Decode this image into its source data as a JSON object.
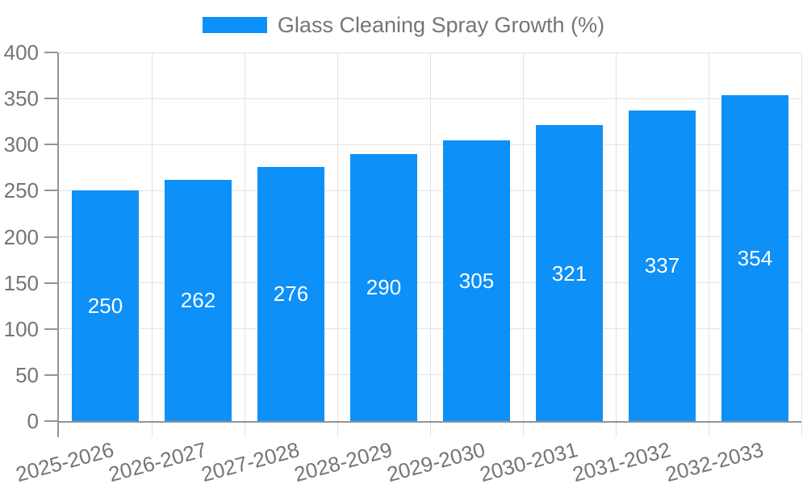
{
  "legend": {
    "label": "Glass Cleaning Spray Growth (%)"
  },
  "chart_data": {
    "type": "bar",
    "title": "Glass Cleaning Spray Growth (%)",
    "categories": [
      "2025-2026",
      "2026-2027",
      "2027-2028",
      "2028-2029",
      "2029-2030",
      "2030-2031",
      "2031-2032",
      "2032-2033"
    ],
    "values": [
      250,
      262,
      276,
      290,
      305,
      321,
      337,
      354
    ],
    "xlabel": "",
    "ylabel": "",
    "ylim": [
      0,
      400
    ],
    "yticks": [
      0,
      50,
      100,
      150,
      200,
      250,
      300,
      350,
      400
    ],
    "grid": true,
    "legend_position": "top",
    "x_tick_rotation_deg": -15,
    "bar_color": "#0d90f8",
    "bar_label_color": "#ffffff",
    "text_color": "#757575",
    "grid_color": "#e3e3e3",
    "axis_color": "#949494"
  }
}
